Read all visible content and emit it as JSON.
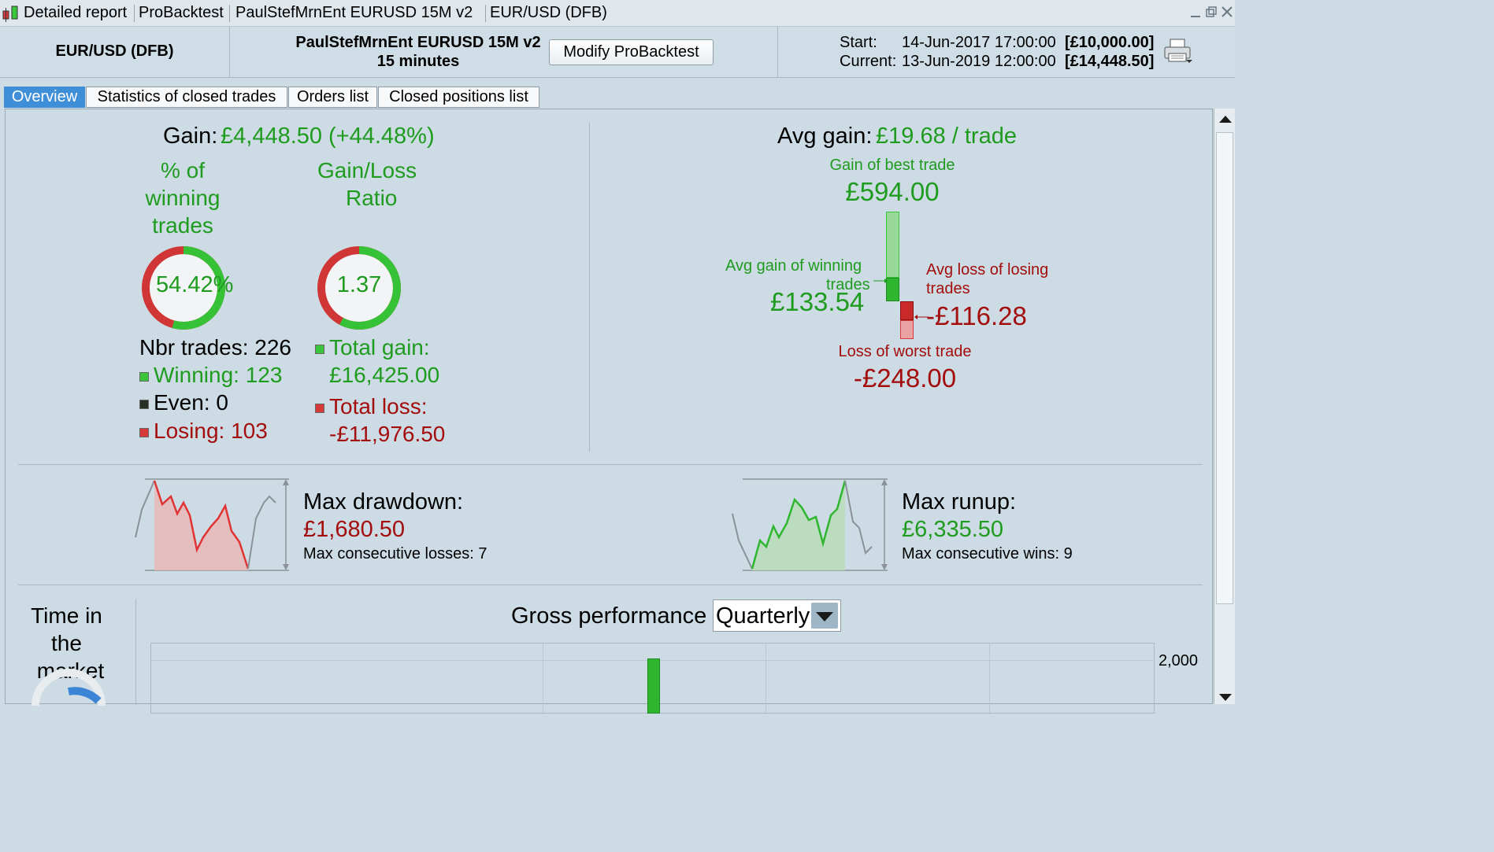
{
  "titlebar": {
    "items": [
      "Detailed report",
      "ProBacktest",
      "PaulStefMrnEnt EURUSD 15M v2",
      "EUR/USD (DFB)"
    ]
  },
  "header": {
    "instrument": "EUR/USD (DFB)",
    "system_name": "PaulStefMrnEnt EURUSD 15M v2",
    "timeframe": "15 minutes",
    "modify_button": "Modify ProBacktest",
    "start_label": "Start:",
    "start_date": "14-Jun-2017 17:00:00",
    "start_capital": "[£10,000.00]",
    "current_label": "Current:",
    "current_date": "13-Jun-2019 12:00:00",
    "current_capital": "[£14,448.50]"
  },
  "tabs": [
    "Overview",
    "Statistics of closed trades",
    "Orders list",
    "Closed positions list"
  ],
  "overview": {
    "gain_label": "Gain:",
    "gain_value": "£4,448.50",
    "gain_pct": "(+44.48%)",
    "winning_pct_title_1": "% of",
    "winning_pct_title_2": "winning",
    "winning_pct_title_3": "trades",
    "winning_pct_value": "54.42%",
    "winning_fraction": 0.5442,
    "ratio_title_1": "Gain/Loss",
    "ratio_title_2": "Ratio",
    "ratio_value": "1.37",
    "ratio_fraction": 0.578,
    "nbr_trades": "Nbr trades: 226",
    "winning": "Winning: 123",
    "even": "Even: 0",
    "losing": "Losing: 103",
    "total_gain_label": "Total gain:",
    "total_gain_value": "£16,425.00",
    "total_loss_label": "Total loss:",
    "total_loss_value": "-£11,976.50",
    "avg_gain_label": "Avg gain:",
    "avg_gain_value": "£19.68 / trade",
    "best_trade_label": "Gain of best trade",
    "best_trade_value": "£594.00",
    "avg_win_label_1": "Avg gain of winning",
    "avg_win_label_2": "trades",
    "avg_win_value": "£133.54",
    "avg_loss_label_1": "Avg loss of losing",
    "avg_loss_label_2": "trades",
    "avg_loss_value": "-£116.28",
    "worst_trade_label": "Loss of worst trade",
    "worst_trade_value": "-£248.00",
    "max_drawdown_label": "Max drawdown:",
    "max_drawdown_value": "£1,680.50",
    "max_consec_losses": "Max consecutive losses: 7",
    "max_runup_label": "Max runup:",
    "max_runup_value": "£6,335.50",
    "max_consec_wins": "Max consecutive wins: 9",
    "time_in_market_1": "Time in",
    "time_in_market_2": "the",
    "time_in_market_3": "market",
    "gross_perf_label": "Gross performance",
    "period_select": "Quarterly",
    "y_tick_top": "2,000"
  },
  "colors": {
    "green": "#1f9b1f",
    "red": "#a40d0d",
    "tab_active": "#3f8fd8",
    "panel_bg": "#ccdbe4"
  }
}
